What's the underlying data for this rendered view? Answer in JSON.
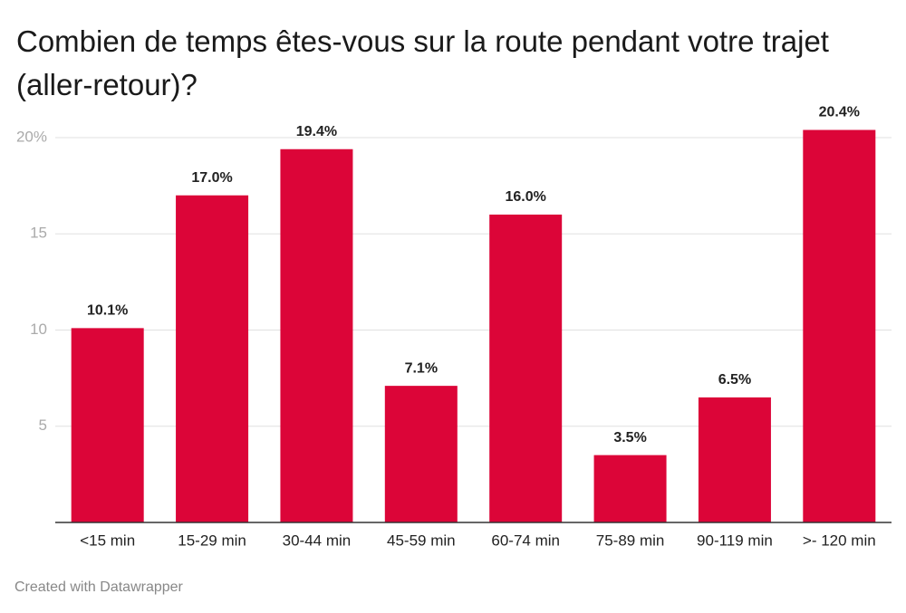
{
  "chart_data": {
    "type": "bar",
    "title": "Combien de temps êtes-vous sur la route pendant votre trajet (aller-retour)?",
    "categories": [
      "<15 min",
      "15-29 min",
      "30-44 min",
      "45-59 min",
      "60-74 min",
      "75-89 min",
      "90-119 min",
      ">- 120 min"
    ],
    "values": [
      10.1,
      17.0,
      19.4,
      7.1,
      16.0,
      3.5,
      6.5,
      20.4
    ],
    "value_labels": [
      "10.1%",
      "17.0%",
      "19.4%",
      "7.1%",
      "16.0%",
      "3.5%",
      "6.5%",
      "20.4%"
    ],
    "color": "#dc0538",
    "ylim": [
      0,
      20
    ],
    "yticks": [
      5,
      10,
      15,
      {
        "value": 20,
        "label": "20%"
      }
    ],
    "grid": true,
    "footer": "Created with Datawrapper"
  }
}
